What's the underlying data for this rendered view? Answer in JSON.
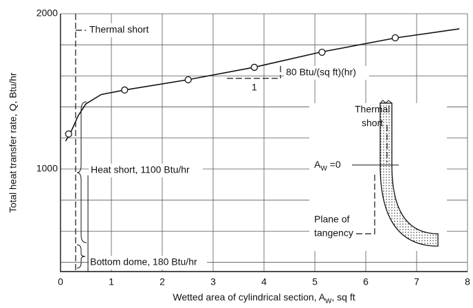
{
  "chart_data": {
    "type": "scatter",
    "x_label": [
      "Wetted area of cylindrical section, A",
      "W",
      ", sq ft"
    ],
    "y_label": "Total heat transfer rate, Q, Btu/hr",
    "xlim": [
      0,
      8
    ],
    "xticks": [
      0,
      1,
      2,
      3,
      4,
      5,
      6,
      7,
      8
    ],
    "ylim": [
      340,
      2000
    ],
    "yticks": [
      1000,
      2000
    ],
    "ygrid": [
      400,
      600,
      800,
      1200,
      1400,
      1600,
      1800
    ],
    "grid": true,
    "color": "#111111",
    "points": {
      "x": [
        0.16,
        1.26,
        2.51,
        3.81,
        5.14,
        6.58
      ],
      "y": [
        1226,
        1509,
        1575,
        1655,
        1752,
        1845
      ]
    },
    "curve": {
      "x": [
        0.1,
        0.2,
        0.35,
        0.5,
        0.8,
        1.26,
        2.5,
        3.8,
        5.1,
        6.6,
        7.84
      ],
      "y": [
        1180,
        1235,
        1345,
        1420,
        1480,
        1509,
        1575,
        1655,
        1752,
        1845,
        1903
      ]
    },
    "annotations": [
      "Thermal short",
      "Heat short, 1100 Btu/hr",
      "Bottom dome, 180 Btu/hr",
      "80 Btu/(sq ft)(hr)",
      "1"
    ],
    "inset": {
      "thermal": [
        "Thermal",
        "short"
      ],
      "aw": [
        "A",
        "W",
        " =0"
      ],
      "plane": [
        "Plane of",
        "tangency"
      ]
    }
  }
}
